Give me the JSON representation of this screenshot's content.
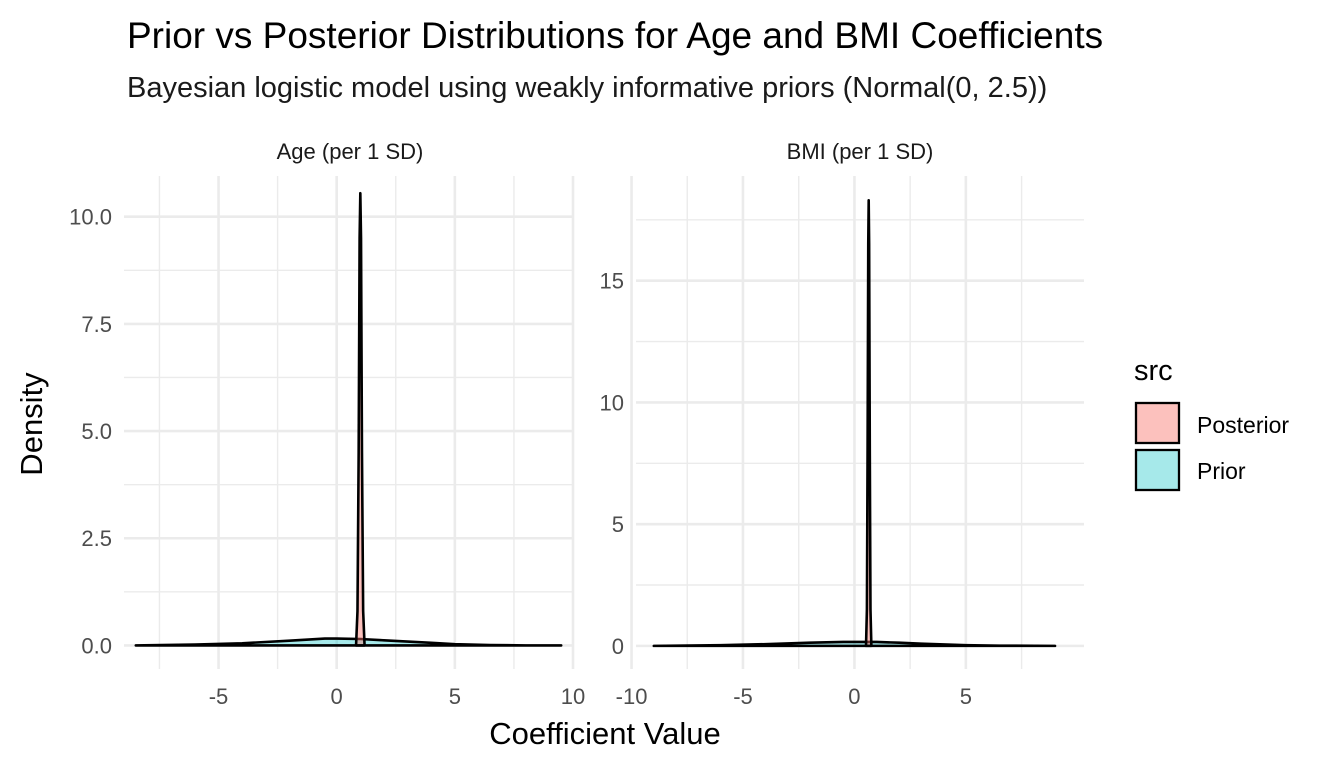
{
  "chart_data": {
    "type": "area",
    "title": "Prior vs Posterior Distributions for Age and BMI Coefficients",
    "subtitle": "Bayesian logistic model using weakly informative priors (Normal(0, 2.5))",
    "xlabel": "Coefficient Value",
    "ylabel": "Density",
    "legend": {
      "title": "src",
      "position": "right",
      "entries": [
        {
          "name": "Posterior",
          "color": "#F8766D"
        },
        {
          "name": "Prior",
          "color": "#00BFC4"
        }
      ]
    },
    "grid": true,
    "panels": [
      {
        "strip": "Age (per 1 SD)",
        "xlim": [
          -9.0,
          10.0
        ],
        "ylim": [
          -0.55,
          10.95
        ],
        "x_ticks": [
          -5,
          0,
          5,
          10
        ],
        "x_tick_labels": [
          "-5",
          "0",
          "5",
          "10"
        ],
        "y_ticks": [
          0,
          2.5,
          5,
          7.5,
          10
        ],
        "y_tick_labels": [
          "0.0",
          "2.5",
          "5.0",
          "7.5",
          "10.0"
        ],
        "series": [
          {
            "name": "Prior",
            "x": [
              -8.5,
              -6,
              -4,
              -2,
              -0.5,
              0,
              1,
              2,
              3,
              4,
              5,
              6.5,
              8,
              9.5
            ],
            "y": [
              0.0,
              0.02,
              0.05,
              0.11,
              0.16,
              0.16,
              0.15,
              0.12,
              0.09,
              0.06,
              0.03,
              0.01,
              0.0,
              0.0
            ]
          },
          {
            "name": "Posterior",
            "x": [
              0.82,
              0.88,
              0.93,
              0.97,
              1.0,
              1.03,
              1.07,
              1.12,
              1.18
            ],
            "y": [
              0.0,
              0.8,
              4.5,
              9.5,
              10.55,
              9.5,
              4.5,
              0.8,
              0.0
            ]
          }
        ]
      },
      {
        "strip": "BMI (per 1 SD)",
        "xlim": [
          -9.8,
          10.3
        ],
        "ylim": [
          -0.95,
          19.3
        ],
        "x_ticks": [
          -10,
          -5,
          0,
          5
        ],
        "x_tick_labels": [
          "-10",
          "-5",
          "0",
          "5"
        ],
        "y_ticks": [
          0,
          5,
          10,
          15
        ],
        "y_tick_labels": [
          "0",
          "5",
          "10",
          "15"
        ],
        "series": [
          {
            "name": "Prior",
            "x": [
              -9,
              -6,
              -4,
              -2,
              -0.5,
              0,
              1,
              2,
              3,
              4,
              5,
              6.5,
              9
            ],
            "y": [
              0.0,
              0.03,
              0.07,
              0.13,
              0.16,
              0.16,
              0.16,
              0.13,
              0.09,
              0.06,
              0.03,
              0.01,
              0.0
            ]
          },
          {
            "name": "Posterior",
            "x": [
              0.52,
              0.56,
              0.59,
              0.62,
              0.64,
              0.66,
              0.69,
              0.72,
              0.76
            ],
            "y": [
              0.0,
              1.5,
              8.0,
              16.5,
              18.3,
              16.5,
              8.0,
              1.5,
              0.0
            ]
          }
        ]
      }
    ]
  }
}
